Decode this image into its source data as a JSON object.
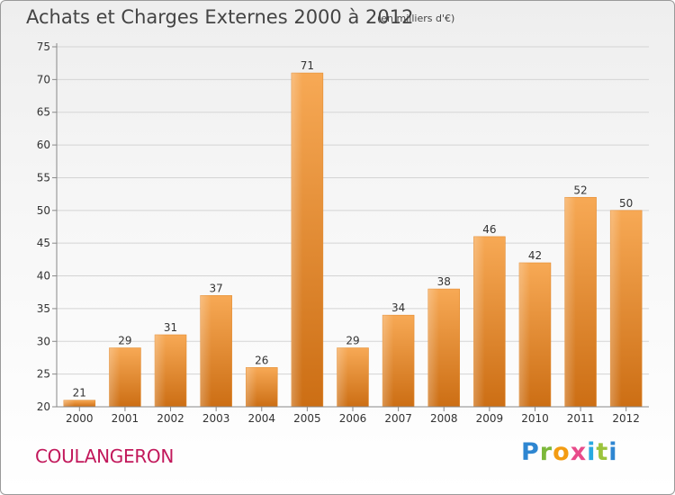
{
  "header": {
    "title": "Achats et Charges Externes 2000 à 2012",
    "unit": "(en milliers d'€)"
  },
  "footer": {
    "commune": "COULANGERON",
    "brand": "Proxiti"
  },
  "colors": {
    "bar_light": "#f7a955",
    "bar_dark": "#cc6e14",
    "grid": "#d4d4d4",
    "axis_text": "#333333",
    "commune_text": "#c2185b"
  },
  "chart_data": {
    "type": "bar",
    "categories": [
      "2000",
      "2001",
      "2002",
      "2003",
      "2004",
      "2005",
      "2006",
      "2007",
      "2008",
      "2009",
      "2010",
      "2011",
      "2012"
    ],
    "values": [
      21,
      29,
      31,
      37,
      26,
      71,
      29,
      34,
      38,
      46,
      42,
      52,
      50
    ],
    "ylim": [
      20,
      75
    ],
    "yticks": [
      20,
      25,
      30,
      35,
      40,
      45,
      50,
      55,
      60,
      65,
      70,
      75
    ],
    "grid": true
  }
}
